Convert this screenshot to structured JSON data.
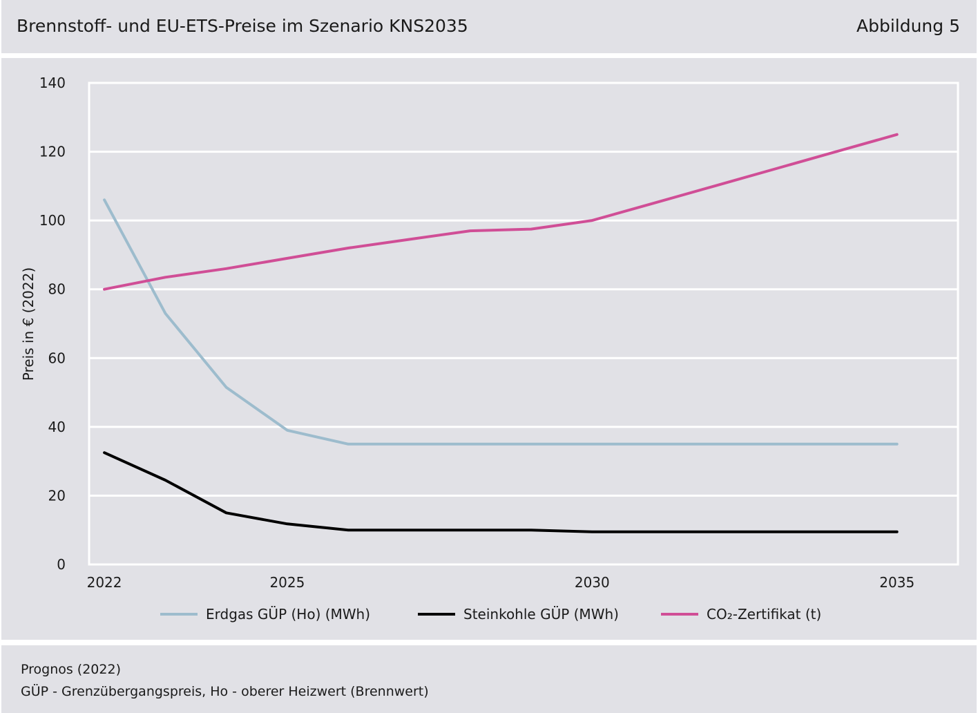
{
  "header": {
    "title": "Brennstoff- und EU-ETS-Preise im Szenario KNS2035",
    "figure_label": "Abbildung 5"
  },
  "footer": {
    "source": "Prognos (2022)",
    "note": "GÜP - Grenzübergangspreis, Ho - oberer Heizwert (Brennwert)"
  },
  "chart_data": {
    "type": "line",
    "title": "",
    "xlabel": "",
    "ylabel": "Preis in € (2022)",
    "xlim": [
      2021.75,
      2036.0
    ],
    "ylim": [
      0,
      140
    ],
    "x_ticks": [
      2022,
      2025,
      2030,
      2035
    ],
    "y_ticks": [
      0,
      20,
      40,
      60,
      80,
      100,
      120,
      140
    ],
    "grid": "horizontal",
    "legend_position": "bottom",
    "x": [
      2022,
      2023,
      2024,
      2025,
      2026,
      2027,
      2028,
      2029,
      2030,
      2031,
      2032,
      2033,
      2034,
      2035
    ],
    "series": [
      {
        "name": "Erdgas GÜP (Ho) (MWh)",
        "color": "#9dbccd",
        "values": [
          106,
          73,
          51.5,
          39,
          35,
          35,
          35,
          35,
          35,
          35,
          35,
          35,
          35,
          35
        ]
      },
      {
        "name": "Steinkohle GÜP (MWh)",
        "color": "#000000",
        "values": [
          32.5,
          24.5,
          15,
          11.8,
          10,
          10,
          10,
          10,
          9.5,
          9.5,
          9.5,
          9.5,
          9.5,
          9.5
        ]
      },
      {
        "name": "CO₂-Zertifikat (t)",
        "color": "#d04e96",
        "values": [
          80,
          83.5,
          86,
          89,
          92,
          94.5,
          97,
          97.5,
          100,
          105,
          110,
          115,
          120,
          125
        ]
      }
    ]
  }
}
